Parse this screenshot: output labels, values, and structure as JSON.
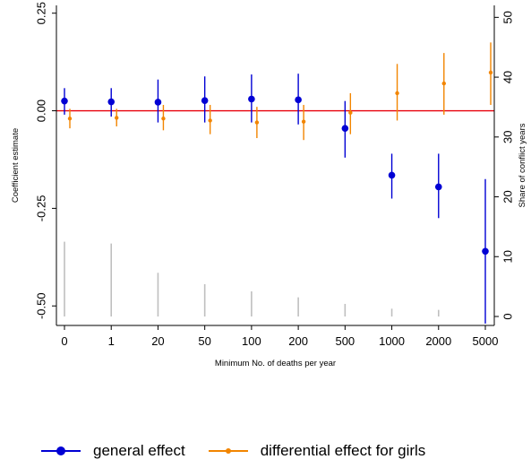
{
  "chart_data": {
    "type": "scatter",
    "subtype": "coefficient-plot-with-confidence-intervals-and-secondary-bars",
    "xlabel": "Minimum No. of deaths per year",
    "ylabel": "Coefficient estimate",
    "y2label": "Share of conflict years",
    "categories": [
      "0",
      "1",
      "20",
      "50",
      "100",
      "200",
      "500",
      "1000",
      "2000",
      "5000"
    ],
    "ylim": [
      -0.55,
      0.27
    ],
    "yticks": [
      -0.5,
      -0.25,
      0.0,
      0.25
    ],
    "ytick_labels": [
      "-0.50",
      "-0.25",
      "0.00",
      "0.25"
    ],
    "y2lim": [
      -1.5,
      52
    ],
    "y2ticks": [
      0,
      10,
      20,
      30,
      40,
      50
    ],
    "y2tick_labels": [
      "0",
      "10",
      "20",
      "30",
      "40",
      "50"
    ],
    "reference_line": {
      "y": 0,
      "color": "#e8000b"
    },
    "grid": false,
    "legend_position": "bottom",
    "series": [
      {
        "name": "general effect",
        "axis": "left",
        "color": "#0000d4",
        "marker": "large-dot",
        "values": [
          0.025,
          0.023,
          0.022,
          0.026,
          0.03,
          0.028,
          -0.045,
          -0.165,
          -0.195,
          -0.36
        ],
        "ci_low": [
          -0.01,
          -0.015,
          -0.03,
          -0.03,
          -0.03,
          -0.035,
          -0.12,
          -0.225,
          -0.275,
          -0.545
        ],
        "ci_high": [
          0.058,
          0.058,
          0.08,
          0.088,
          0.093,
          0.095,
          0.025,
          -0.11,
          -0.11,
          -0.175
        ]
      },
      {
        "name": "differential effect for girls",
        "axis": "left",
        "color": "#f28500",
        "marker": "small-dot",
        "values": [
          -0.02,
          -0.018,
          -0.02,
          -0.025,
          -0.03,
          -0.028,
          -0.005,
          0.045,
          0.07,
          0.098
        ],
        "ci_low": [
          -0.045,
          -0.04,
          -0.05,
          -0.06,
          -0.07,
          -0.075,
          -0.06,
          -0.025,
          -0.01,
          0.015
        ],
        "ci_high": [
          0.005,
          0.005,
          0.015,
          0.015,
          0.01,
          0.015,
          0.045,
          0.12,
          0.148,
          0.175
        ]
      },
      {
        "name": "share of conflict years",
        "axis": "right",
        "color": "#bfbfbf",
        "marker": "spike",
        "values": [
          12.5,
          12.2,
          7.3,
          5.4,
          4.2,
          3.2,
          2.1,
          1.3,
          1.1,
          0
        ]
      }
    ]
  }
}
